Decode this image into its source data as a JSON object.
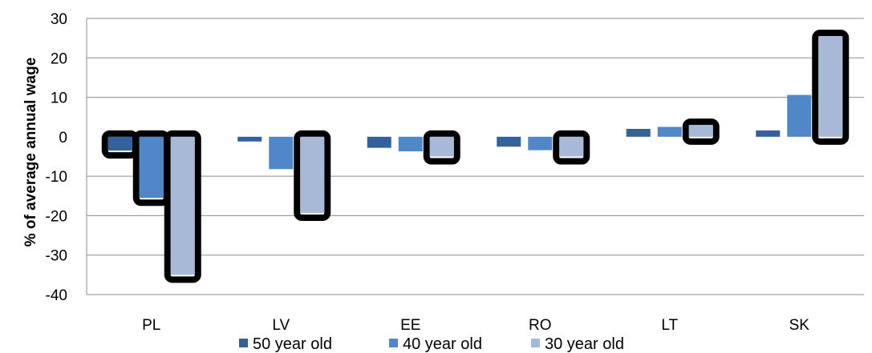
{
  "chart_data": {
    "type": "bar",
    "categories": [
      "PL",
      "LV",
      "EE",
      "RO",
      "LT",
      "SK"
    ],
    "series": [
      {
        "name": "50 year old",
        "color": "#35619a",
        "values": [
          -3.5,
          -1.2,
          -2.8,
          -2.5,
          2.0,
          1.6
        ]
      },
      {
        "name": "40 year old",
        "color": "#4f87c9",
        "values": [
          -15.5,
          -8.2,
          -3.7,
          -3.4,
          2.5,
          10.6
        ]
      },
      {
        "name": "30 year old",
        "color": "#a8b9d8",
        "values": [
          -35.0,
          -19.3,
          -5.0,
          -5.0,
          3.0,
          25.5
        ]
      }
    ],
    "highlighted_series": "30 year old",
    "highlighted_categories_40": [
      "PL"
    ],
    "ylabel": "% of average annual wage",
    "ylim": [
      -40,
      30
    ],
    "yticks": [
      30,
      20,
      10,
      0,
      -10,
      -20,
      -30,
      -40
    ],
    "grid": true,
    "legend_position": "bottom"
  }
}
